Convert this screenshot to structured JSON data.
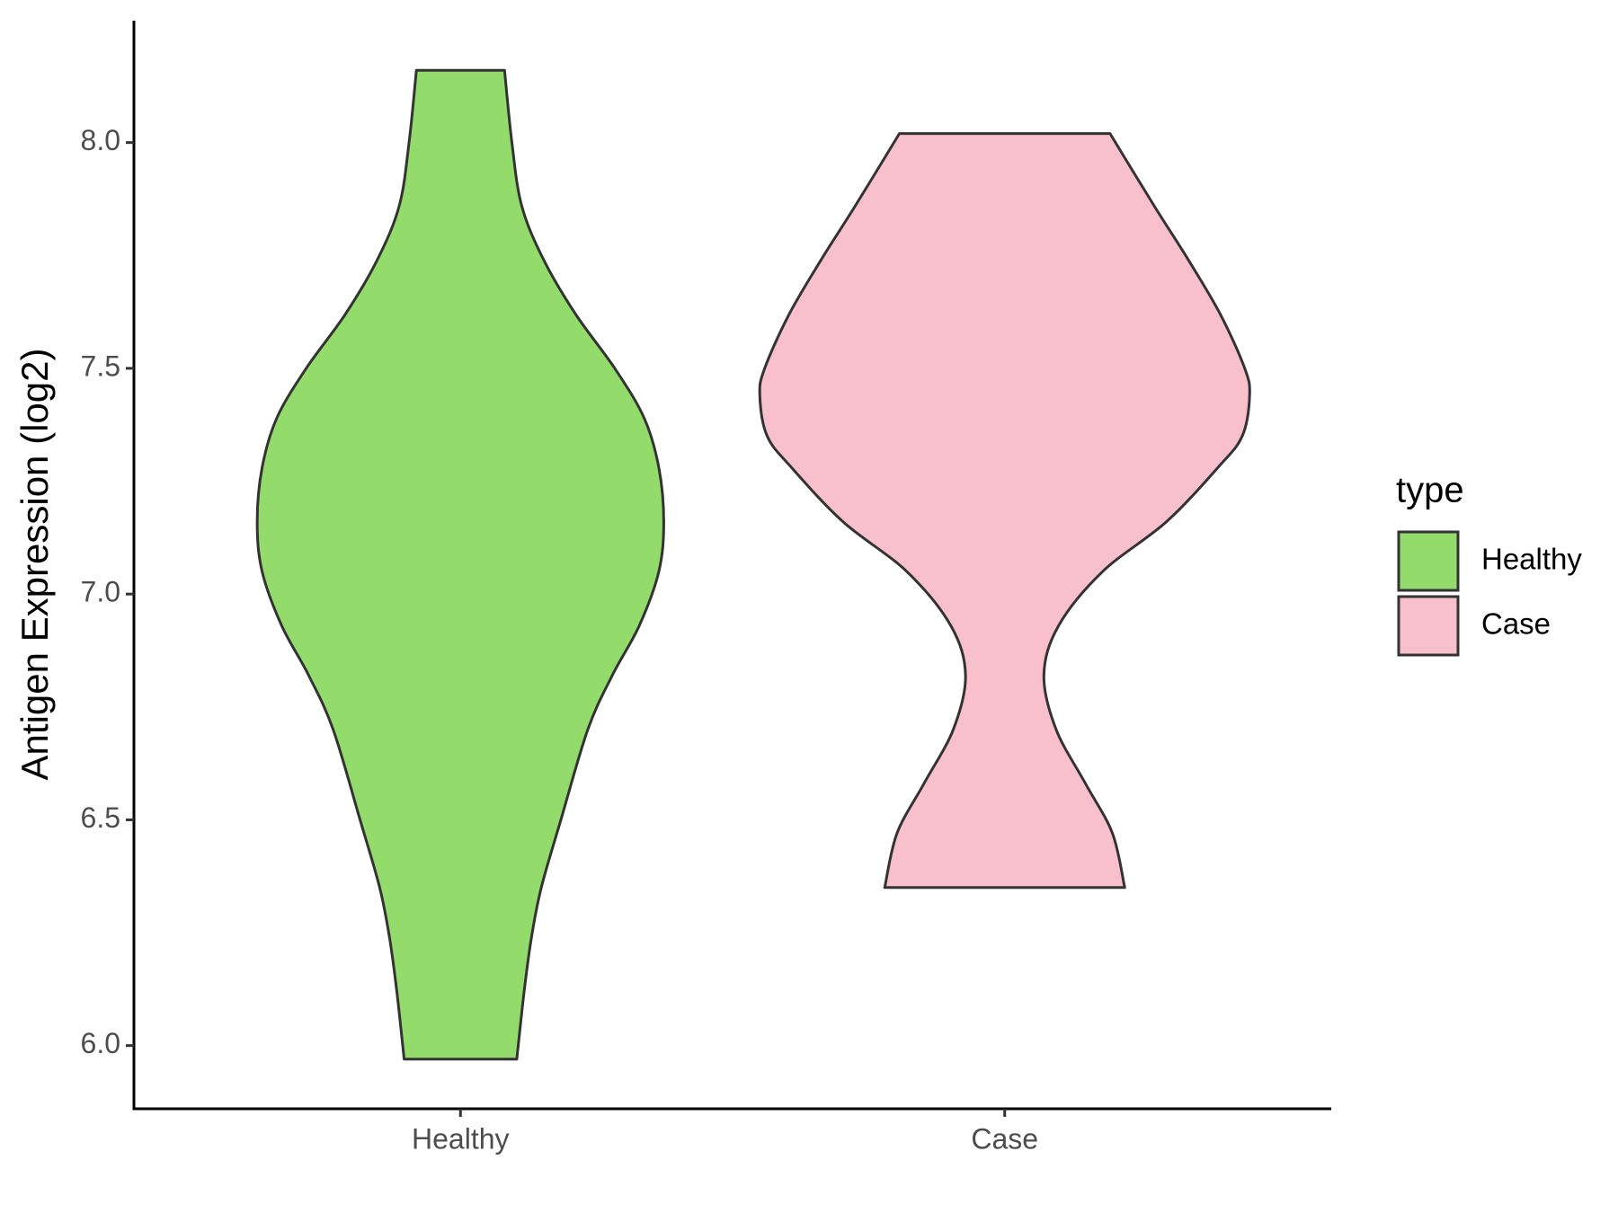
{
  "chart_data": {
    "type": "violin",
    "y_label": "Antigen Expression (log2)",
    "categories": [
      "Healthy",
      "Case"
    ],
    "legend_title": "type",
    "series": [
      {
        "name": "Healthy",
        "color": "#93dc6b",
        "y": [
          8.16,
          8.0,
          7.86,
          7.74,
          7.62,
          7.5,
          7.39,
          7.28,
          7.16,
          7.05,
          6.93,
          6.82,
          6.7,
          6.5,
          6.35,
          6.24,
          6.12,
          5.97
        ],
        "density": [
          0.18,
          0.21,
          0.25,
          0.34,
          0.47,
          0.63,
          0.75,
          0.81,
          0.83,
          0.81,
          0.73,
          0.62,
          0.52,
          0.41,
          0.33,
          0.29,
          0.26,
          0.23
        ]
      },
      {
        "name": "Case",
        "color": "#f8c0cc",
        "y": [
          8.02,
          7.86,
          7.74,
          7.62,
          7.5,
          7.44,
          7.35,
          7.28,
          7.16,
          7.05,
          6.93,
          6.82,
          6.7,
          6.58,
          6.47,
          6.35
        ],
        "density": [
          0.43,
          0.61,
          0.75,
          0.88,
          0.98,
          1.0,
          0.97,
          0.87,
          0.66,
          0.4,
          0.22,
          0.16,
          0.21,
          0.33,
          0.44,
          0.49
        ]
      }
    ],
    "ylim": [
      5.86,
      8.27
    ],
    "yticks": [
      {
        "value": 6,
        "label": "6.0"
      },
      {
        "value": 6.5,
        "label": "6.5"
      },
      {
        "value": 7,
        "label": "7.0"
      },
      {
        "value": 7.5,
        "label": "7.5"
      },
      {
        "value": 8,
        "label": "8.0"
      }
    ],
    "grid": false
  }
}
